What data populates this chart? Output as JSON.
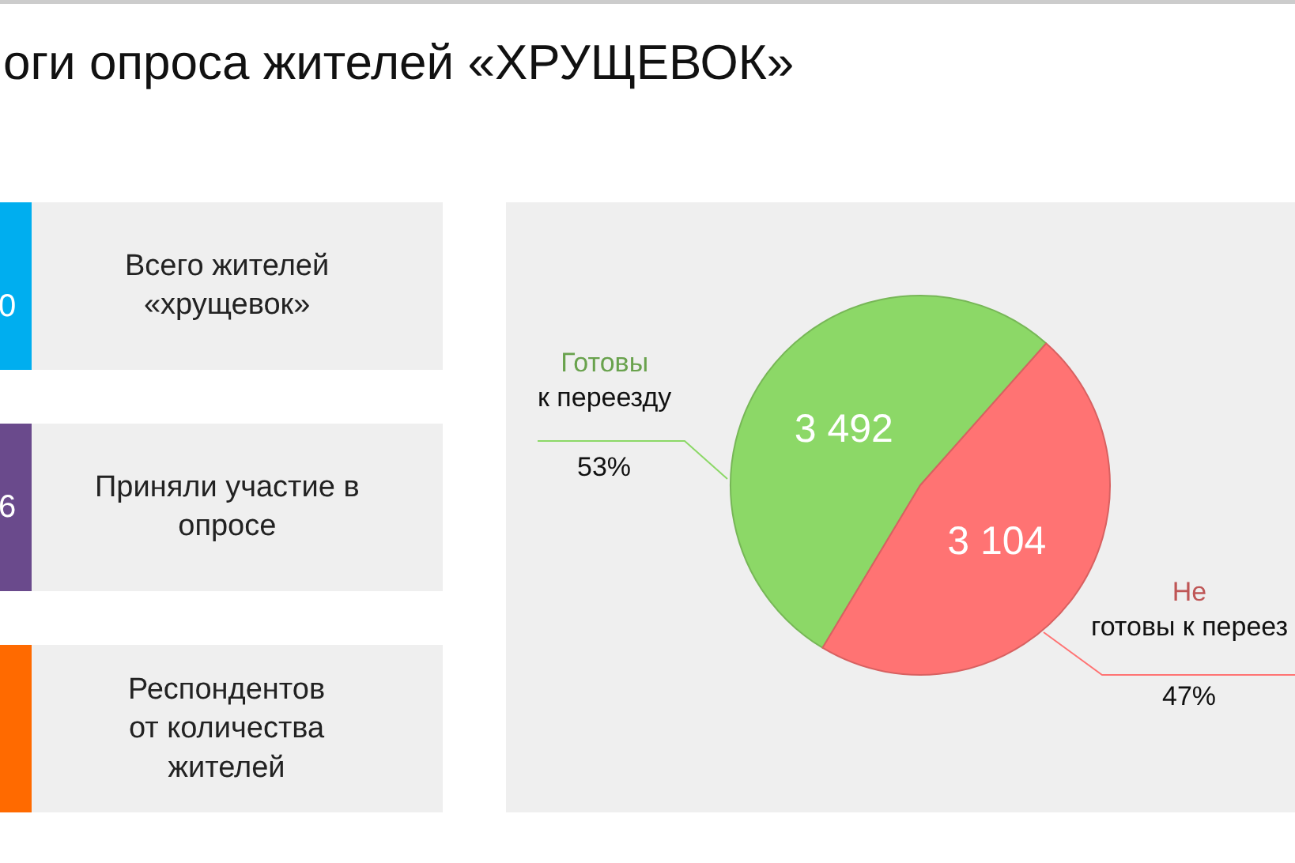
{
  "chart_data": [
    {
      "type": "other",
      "title": "оги опроса жителей «ХРУЩЕВОК»",
      "categories": [
        "Всего жителей\n«хрущевок»",
        "Приняли участие в\nопросе",
        "Респондентов\nот количества\nжителей"
      ],
      "value_labels": [
        "0",
        "6",
        null
      ]
    },
    {
      "type": "pie",
      "categories": [
        "Готовы\nк переезду",
        "Не\nготовы к переез"
      ],
      "values": [
        3492,
        3104
      ],
      "colors": [
        "#8cd867",
        "#ff7373"
      ],
      "value_labels": [
        "3 492",
        "3 104"
      ],
      "annotations": [
        "53%",
        "47%"
      ]
    }
  ]
}
